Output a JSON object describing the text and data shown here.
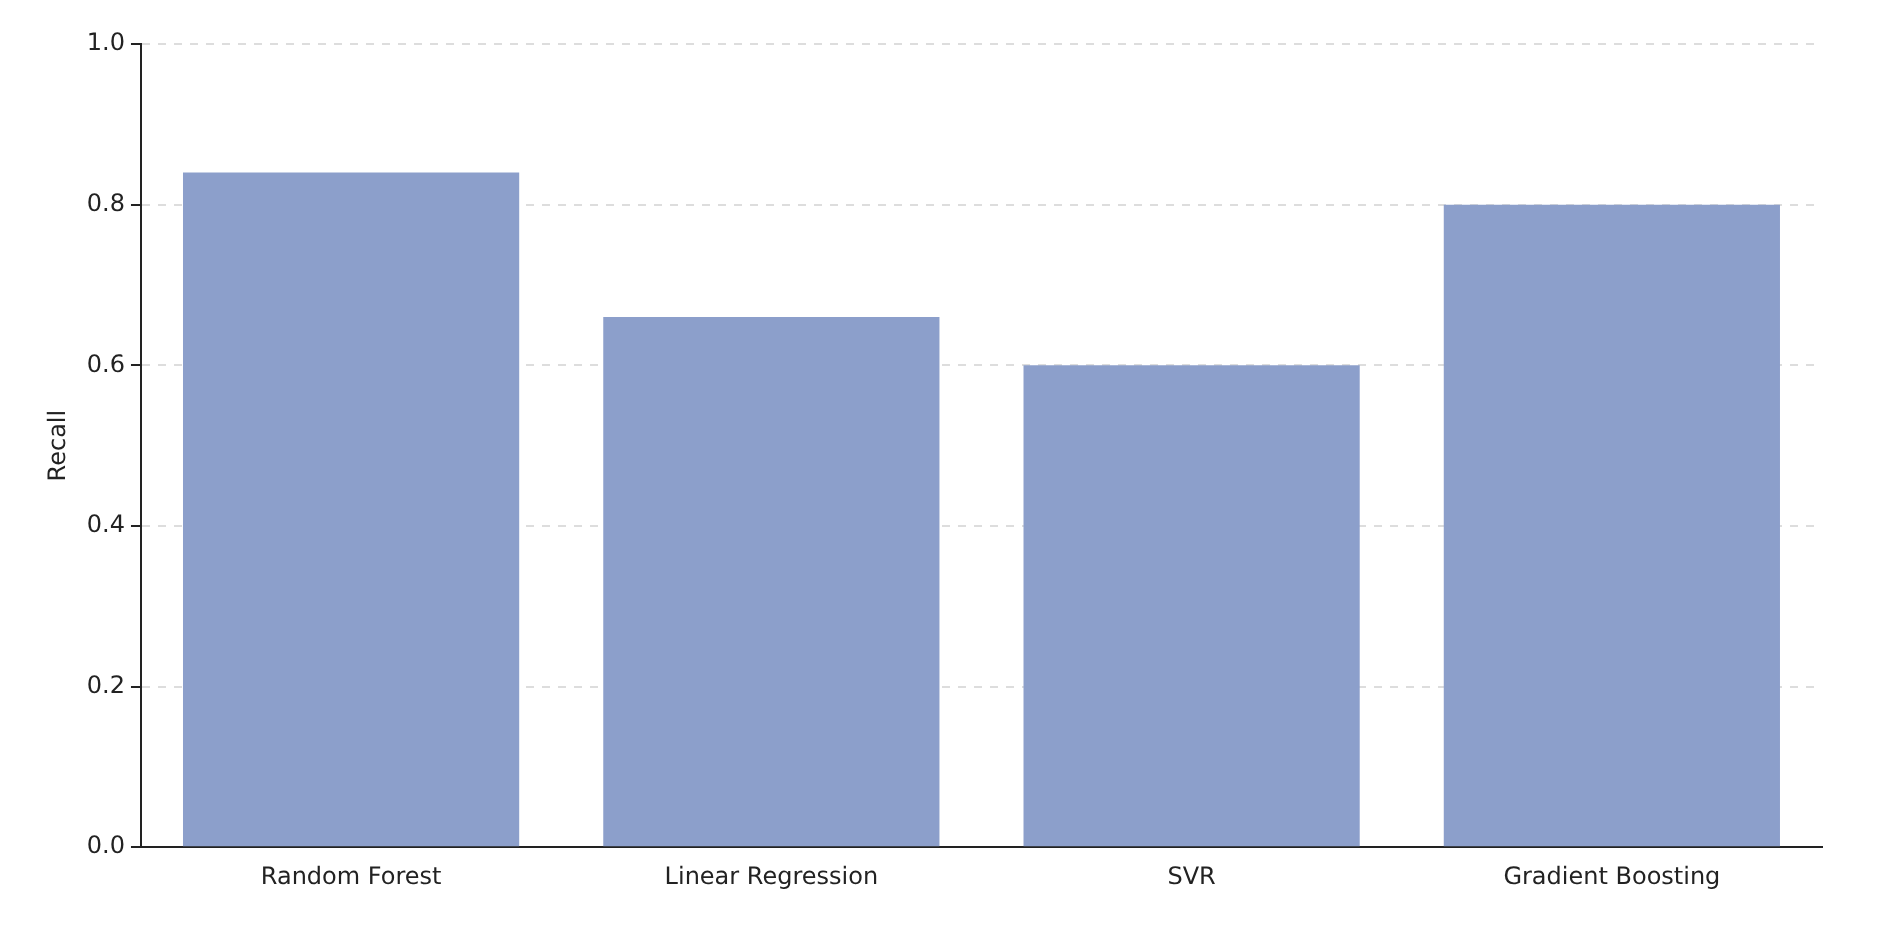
{
  "chart_data": {
    "type": "bar",
    "ylabel": "Recall",
    "categories": [
      "Random Forest",
      "Linear Regression",
      "SVR",
      "Gradient Boosting"
    ],
    "values": [
      0.84,
      0.66,
      0.6,
      0.8
    ],
    "color": "#8c9fcb",
    "ylim": [
      0,
      1.0
    ],
    "yticks": [
      {
        "value": 0,
        "label": "0.0"
      },
      {
        "value": 0.2,
        "label": "0.2"
      },
      {
        "value": 0.4,
        "label": "0.4"
      },
      {
        "value": 0.6,
        "label": "0.6"
      },
      {
        "value": 0.8,
        "label": "0.8"
      },
      {
        "value": 1.0,
        "label": "1.0"
      }
    ],
    "grid": "y",
    "legend": false
  }
}
